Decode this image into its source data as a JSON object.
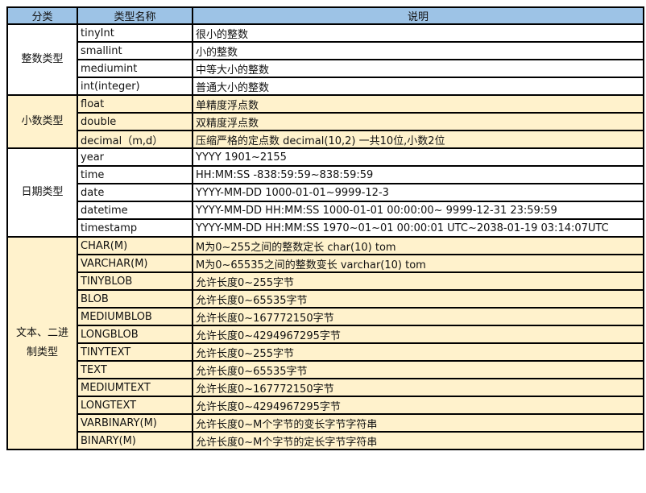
{
  "header": {
    "category": "分类",
    "type_name": "类型名称",
    "description": "说明"
  },
  "colors": {
    "header_bg": "#9dc3e6",
    "alt_bg": "#fff2cc",
    "border": "#000000"
  },
  "groups": [
    {
      "category": "整数类型",
      "alt": false,
      "rows": [
        {
          "type": "tinyInt",
          "desc": "很小的整数"
        },
        {
          "type": "smallint",
          "desc": "小的整数"
        },
        {
          "type": "mediumint",
          "desc": "中等大小的整数"
        },
        {
          "type": "int(integer)",
          "desc": "普通大小的整数"
        }
      ]
    },
    {
      "category": "小数类型",
      "alt": true,
      "rows": [
        {
          "type": "float",
          "desc": "单精度浮点数"
        },
        {
          "type": "double",
          "desc": "双精度浮点数"
        },
        {
          "type": "decimal（m,d）",
          "desc": "压缩严格的定点数 decimal(10,2) 一共10位,小数2位"
        }
      ]
    },
    {
      "category": "日期类型",
      "alt": false,
      "rows": [
        {
          "type": "year",
          "desc": "YYYY  1901~2155"
        },
        {
          "type": "time",
          "desc": "HH:MM:SS  -838:59:59~838:59:59"
        },
        {
          "type": "date",
          "desc": "YYYY-MM-DD 1000-01-01~9999-12-3"
        },
        {
          "type": "datetime",
          "desc": "YYYY-MM-DD HH:MM:SS 1000-01-01 00:00:00~ 9999-12-31 23:59:59"
        },
        {
          "type": "timestamp",
          "desc": "YYYY-MM-DD HH:MM:SS  1970~01~01 00:00:01 UTC~2038-01-19 03:14:07UTC"
        }
      ]
    },
    {
      "category": "文本、二进制类型",
      "alt": true,
      "rows": [
        {
          "type": "CHAR(M)",
          "desc": "M为0~255之间的整数定长 char(10) tom"
        },
        {
          "type": "VARCHAR(M)",
          "desc": "M为0~65535之间的整数变长 varchar(10) tom"
        },
        {
          "type": "TINYBLOB",
          "desc": "允许长度0~255字节"
        },
        {
          "type": "BLOB",
          "desc": "允许长度0~65535字节"
        },
        {
          "type": "MEDIUMBLOB",
          "desc": "允许长度0~167772150字节"
        },
        {
          "type": "LONGBLOB",
          "desc": "允许长度0~4294967295字节"
        },
        {
          "type": "TINYTEXT",
          "desc": "允许长度0~255字节"
        },
        {
          "type": "TEXT",
          "desc": "允许长度0~65535字节"
        },
        {
          "type": "MEDIUMTEXT",
          "desc": "允许长度0~167772150字节"
        },
        {
          "type": "LONGTEXT",
          "desc": "允许长度0~4294967295字节"
        },
        {
          "type": "VARBINARY(M)",
          "desc": "允许长度0~M个字节的变长字节字符串"
        },
        {
          "type": "BINARY(M)",
          "desc": "允许长度0~M个字节的定长字节字符串"
        }
      ]
    }
  ]
}
